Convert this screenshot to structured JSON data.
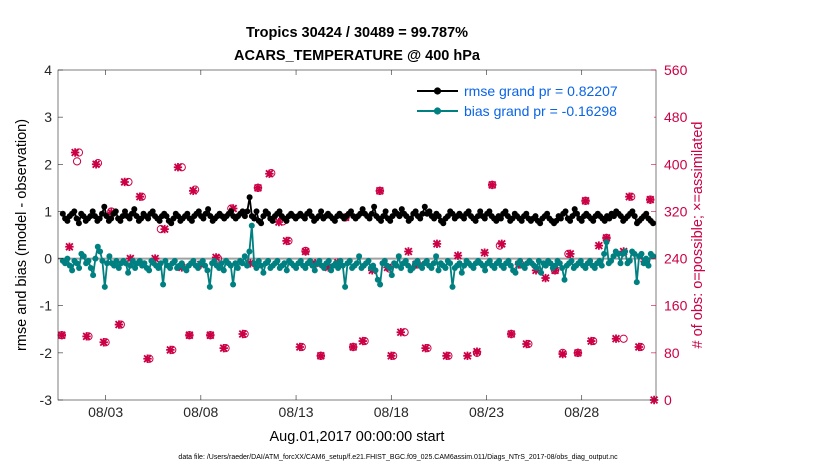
{
  "chart_data": {
    "type": "line",
    "title": "Tropics 30424 / 30489 = 99.787%",
    "subtitle": "ACARS_TEMPERATURE @ 400 hPa",
    "xlabel": "Aug.01,2017 00:00:00 start",
    "ylabel": "rmse and bias (model - observation)",
    "y2label": "# of obs: o=possible; ×=assimilated",
    "footer": "data file: /Users/raeder/DAI/ATM_forcXX/CAM6_setup/f.e21.FHIST_BGC.f09_025.CAM6assim.011/Diags_NTrS_2017-08/obs_diag_output.nc",
    "xlim": [
      0.5,
      31.9
    ],
    "ylim": [
      -3,
      4
    ],
    "y2lim": [
      0,
      560
    ],
    "x_ticks": [
      3,
      8,
      13,
      18,
      23,
      28
    ],
    "x_tick_labels": [
      "08/03",
      "08/08",
      "08/13",
      "08/18",
      "08/23",
      "08/28"
    ],
    "y_ticks": [
      -3,
      -2,
      -1,
      0,
      1,
      2,
      3,
      4
    ],
    "y2_ticks": [
      0,
      80,
      160,
      240,
      320,
      400,
      480,
      560
    ],
    "colors": {
      "rmse": "#000000",
      "bias": "#008080",
      "obs": "#cc0044",
      "legend_text": "#0a64e6",
      "zero_line": "#a0a0a0"
    },
    "series": [
      {
        "name": "rmse grand pr = 0.82207",
        "color": "#000000",
        "values": [
          0.95,
          0.85,
          0.8,
          0.9,
          0.95,
          1.0,
          0.85,
          0.75,
          0.95,
          0.9,
          0.8,
          0.85,
          0.9,
          1.0,
          0.9,
          0.8,
          0.85,
          0.95,
          1.1,
          0.9,
          0.8,
          0.85,
          0.95,
          1.0,
          0.85,
          0.8,
          0.9,
          1.0,
          0.9,
          0.85,
          0.95,
          1.05,
          0.9,
          0.8,
          0.85,
          0.95,
          0.9,
          0.85,
          0.95,
          1.0,
          0.9,
          0.85,
          0.8,
          0.9,
          0.95,
          0.9,
          0.8,
          0.75,
          0.85,
          0.95,
          0.9,
          0.8,
          0.85,
          0.9,
          0.95,
          0.85,
          0.8,
          0.9,
          0.95,
          1.0,
          0.9,
          0.85,
          0.95,
          1.05,
          0.9,
          0.8,
          0.85,
          0.9,
          0.95,
          0.9,
          0.85,
          0.9,
          0.95,
          1.0,
          0.9,
          0.85,
          0.9,
          0.95,
          1.0,
          0.9,
          1.0,
          1.3,
          0.9,
          0.85,
          1.0,
          0.8,
          0.75,
          0.9,
          1.0,
          0.95,
          0.85,
          0.8,
          0.9,
          0.95,
          1.0,
          0.9,
          0.85,
          0.8,
          0.9,
          0.95,
          0.9,
          0.85,
          0.9,
          0.95,
          0.9,
          0.85,
          0.95,
          1.0,
          0.9,
          0.8,
          0.85,
          0.9,
          1.0,
          0.85,
          0.9,
          0.95,
          0.9,
          0.85,
          0.8,
          0.9,
          0.95,
          0.9,
          0.85,
          0.9,
          0.95,
          1.0,
          0.9,
          0.85,
          0.9,
          0.95,
          1.05,
          0.95,
          0.9,
          0.85,
          0.95,
          1.1,
          0.9,
          0.85,
          0.8,
          0.9,
          1.0,
          0.85,
          0.8,
          0.9,
          1.0,
          0.95,
          0.9,
          1.05,
          0.95,
          0.9,
          0.8,
          0.85,
          0.95,
          1.0,
          0.9,
          0.85,
          0.95,
          1.1,
          0.95,
          1.0,
          0.9,
          0.85,
          0.95,
          0.9,
          0.8,
          0.75,
          0.85,
          0.9,
          1.0,
          0.95,
          0.85,
          0.9,
          0.95,
          0.9,
          0.85,
          0.95,
          1.0,
          0.9,
          0.85,
          0.8,
          0.9,
          1.0,
          0.9,
          0.85,
          0.95,
          1.0,
          0.9,
          0.85,
          0.8,
          0.9,
          0.85,
          0.95,
          1.0,
          0.9,
          0.8,
          0.85,
          0.95,
          0.9,
          0.85,
          0.8,
          0.9,
          0.95,
          0.85,
          0.8,
          0.85,
          0.9,
          0.8,
          0.75,
          0.85,
          0.9,
          0.95,
          0.85,
          0.8,
          0.75,
          0.8,
          0.9,
          0.85,
          0.95,
          1.0,
          0.85,
          0.8,
          0.9,
          1.05,
          0.95,
          0.85,
          0.8,
          0.9,
          0.95,
          0.9,
          0.85,
          0.8,
          0.9,
          0.95,
          0.9,
          0.85,
          0.8,
          0.9,
          0.85,
          0.95,
          0.9,
          1.0,
          0.95,
          0.9,
          0.8,
          0.85,
          0.9,
          0.95,
          1.0,
          0.9,
          0.75,
          0.8,
          0.85,
          0.9,
          0.95,
          0.85,
          0.8,
          0.75
        ]
      },
      {
        "name": "bias grand pr = -0.16298",
        "color": "#008080",
        "values": [
          -0.05,
          -0.1,
          0.0,
          -0.15,
          -0.25,
          -0.05,
          -0.1,
          -0.2,
          0.1,
          0.05,
          -0.1,
          -0.05,
          -0.2,
          -0.35,
          0.0,
          0.25,
          0.15,
          -0.05,
          -0.6,
          -0.1,
          0.05,
          -0.1,
          -0.15,
          -0.05,
          -0.2,
          -0.1,
          -0.05,
          -0.1,
          -0.3,
          -0.15,
          -0.05,
          -0.2,
          -0.1,
          -0.05,
          -0.15,
          -0.1,
          -0.2,
          -0.25,
          -0.05,
          -0.1,
          -0.15,
          -0.2,
          -0.1,
          -0.55,
          -0.05,
          -0.15,
          -0.2,
          -0.1,
          -0.05,
          -0.2,
          -0.15,
          -0.1,
          -0.2,
          -0.25,
          -0.15,
          -0.1,
          -0.05,
          -0.15,
          -0.2,
          -0.1,
          -0.05,
          -0.15,
          -0.25,
          -0.6,
          -0.1,
          -0.05,
          -0.15,
          -0.2,
          -0.1,
          -0.25,
          -0.05,
          -0.1,
          -0.15,
          -0.55,
          -0.1,
          -0.2,
          -0.05,
          -0.1,
          0.05,
          -0.15,
          0.15,
          0.7,
          -0.1,
          -0.2,
          -0.05,
          -0.15,
          -0.3,
          -0.1,
          -0.05,
          -0.2,
          -0.15,
          -0.1,
          -0.05,
          -0.2,
          -0.15,
          -0.1,
          -0.25,
          -0.05,
          -0.1,
          -0.15,
          -0.2,
          -0.1,
          -0.05,
          -0.15,
          -0.2,
          -0.1,
          -0.05,
          -0.15,
          -0.25,
          -0.1,
          -0.05,
          -0.15,
          -0.2,
          -0.1,
          -0.05,
          -0.25,
          -0.15,
          -0.1,
          -0.2,
          -0.05,
          -0.15,
          -0.6,
          -0.1,
          -0.05,
          -0.2,
          -0.15,
          -0.1,
          0.05,
          -0.2,
          -0.15,
          -0.1,
          -0.05,
          -0.2,
          -0.15,
          -0.25,
          -0.45,
          -0.55,
          -0.1,
          -0.05,
          -0.15,
          -0.2,
          -0.35,
          -0.1,
          -0.15,
          0.05,
          -0.2,
          -0.1,
          -0.05,
          -0.15,
          -0.25,
          -0.2,
          -0.1,
          -0.05,
          -0.15,
          -0.2,
          -0.1,
          -0.05,
          -0.15,
          -0.2,
          -0.1,
          0.05,
          -0.25,
          -0.1,
          -0.15,
          -0.2,
          -0.05,
          -0.1,
          -0.6,
          -0.2,
          -0.15,
          -0.1,
          -0.3,
          -0.15,
          -0.05,
          -0.1,
          -0.15,
          -0.2,
          -0.1,
          -0.05,
          -0.1,
          -0.15,
          -0.25,
          -0.1,
          -0.05,
          -0.15,
          -0.2,
          -0.1,
          -0.05,
          -0.15,
          -0.2,
          -0.1,
          -0.05,
          -0.15,
          -0.25,
          -0.3,
          -0.1,
          -0.05,
          -0.15,
          -0.2,
          -0.1,
          -0.05,
          -0.1,
          -0.15,
          -0.2,
          -0.05,
          -0.3,
          -0.1,
          -0.15,
          -0.05,
          -0.1,
          -0.2,
          -0.15,
          -0.05,
          -0.1,
          -0.2,
          -0.45,
          -0.15,
          -0.1,
          -0.05,
          -0.2,
          -0.15,
          -0.1,
          -0.05,
          -0.15,
          -0.2,
          -0.1,
          -0.05,
          -0.15,
          -0.2,
          -0.1,
          -0.05,
          -0.15,
          0.1,
          0.35,
          -0.1,
          -0.05,
          0.05,
          0.15,
          0.1,
          -0.1,
          0.1,
          0.15,
          -0.1,
          -0.05,
          0.15,
          0.1,
          -0.5,
          0.05,
          0.1,
          -0.1,
          0.0,
          -0.15,
          0.1,
          0.05
        ]
      }
    ],
    "obs_possible": [
      [
        0.7,
        110
      ],
      [
        1.5,
        405
      ],
      [
        1.6,
        420
      ],
      [
        2.1,
        108
      ],
      [
        2.6,
        402
      ],
      [
        3.0,
        98
      ],
      [
        3.3,
        320
      ],
      [
        3.8,
        128
      ],
      [
        4.2,
        370
      ],
      [
        4.9,
        345
      ],
      [
        5.3,
        70
      ],
      [
        5.9,
        290
      ],
      [
        6.5,
        85
      ],
      [
        7.0,
        395
      ],
      [
        7.4,
        110
      ],
      [
        7.7,
        357
      ],
      [
        8.5,
        110
      ],
      [
        8.9,
        240
      ],
      [
        9.3,
        88
      ],
      [
        9.6,
        325
      ],
      [
        10.3,
        112
      ],
      [
        11.0,
        360
      ],
      [
        11.7,
        385
      ],
      [
        12.3,
        303
      ],
      [
        12.6,
        270
      ],
      [
        13.3,
        90
      ],
      [
        13.5,
        253
      ],
      [
        14.3,
        75
      ],
      [
        15.6,
        310
      ],
      [
        16.0,
        90
      ],
      [
        16.6,
        100
      ],
      [
        17.4,
        355
      ],
      [
        17.9,
        223
      ],
      [
        18.1,
        75
      ],
      [
        18.7,
        115
      ],
      [
        19.4,
        230
      ],
      [
        19.9,
        88
      ],
      [
        21.0,
        75
      ],
      [
        22.5,
        80
      ],
      [
        23.3,
        365
      ],
      [
        23.7,
        262
      ],
      [
        24.3,
        112
      ],
      [
        24.8,
        230
      ],
      [
        25.2,
        95
      ],
      [
        26.6,
        220
      ],
      [
        27.0,
        80
      ],
      [
        27.3,
        248
      ],
      [
        27.8,
        80
      ],
      [
        28.2,
        338
      ],
      [
        28.6,
        100
      ],
      [
        29.3,
        275
      ],
      [
        30.2,
        104
      ],
      [
        30.6,
        345
      ],
      [
        31.1,
        90
      ],
      [
        31.6,
        340
      ]
    ],
    "obs_assimilated": [
      [
        0.7,
        110
      ],
      [
        1.1,
        260
      ],
      [
        1.4,
        420
      ],
      [
        2.0,
        108
      ],
      [
        2.5,
        400
      ],
      [
        2.9,
        98
      ],
      [
        3.3,
        318
      ],
      [
        3.7,
        128
      ],
      [
        4.0,
        370
      ],
      [
        4.3,
        240
      ],
      [
        4.8,
        345
      ],
      [
        5.2,
        70
      ],
      [
        5.6,
        240
      ],
      [
        6.1,
        290
      ],
      [
        6.4,
        85
      ],
      [
        6.8,
        395
      ],
      [
        7.0,
        225
      ],
      [
        7.4,
        110
      ],
      [
        7.6,
        355
      ],
      [
        8.0,
        230
      ],
      [
        8.5,
        110
      ],
      [
        8.8,
        242
      ],
      [
        9.2,
        88
      ],
      [
        9.7,
        325
      ],
      [
        10.2,
        112
      ],
      [
        10.6,
        232
      ],
      [
        11.0,
        360
      ],
      [
        11.6,
        384
      ],
      [
        12.1,
        302
      ],
      [
        12.5,
        270
      ],
      [
        13.2,
        90
      ],
      [
        13.5,
        252
      ],
      [
        14.0,
        232
      ],
      [
        14.3,
        75
      ],
      [
        14.7,
        225
      ],
      [
        15.2,
        233
      ],
      [
        15.6,
        310
      ],
      [
        16.0,
        90
      ],
      [
        16.5,
        100
      ],
      [
        17.0,
        220
      ],
      [
        17.4,
        355
      ],
      [
        17.8,
        225
      ],
      [
        18.0,
        75
      ],
      [
        18.5,
        115
      ],
      [
        18.9,
        252
      ],
      [
        19.3,
        230
      ],
      [
        19.8,
        88
      ],
      [
        20.4,
        265
      ],
      [
        20.9,
        75
      ],
      [
        21.5,
        245
      ],
      [
        22.0,
        75
      ],
      [
        22.5,
        82
      ],
      [
        22.9,
        250
      ],
      [
        23.3,
        365
      ],
      [
        23.8,
        265
      ],
      [
        24.3,
        112
      ],
      [
        24.7,
        230
      ],
      [
        25.1,
        95
      ],
      [
        25.6,
        220
      ],
      [
        26.1,
        207
      ],
      [
        26.6,
        220
      ],
      [
        27.0,
        78
      ],
      [
        27.4,
        248
      ],
      [
        27.8,
        80
      ],
      [
        28.2,
        338
      ],
      [
        28.5,
        100
      ],
      [
        28.9,
        262
      ],
      [
        29.3,
        275
      ],
      [
        29.8,
        104
      ],
      [
        30.2,
        252
      ],
      [
        30.5,
        345
      ],
      [
        31.0,
        90
      ],
      [
        31.3,
        235
      ],
      [
        31.6,
        340
      ],
      [
        31.8,
        0
      ]
    ]
  }
}
